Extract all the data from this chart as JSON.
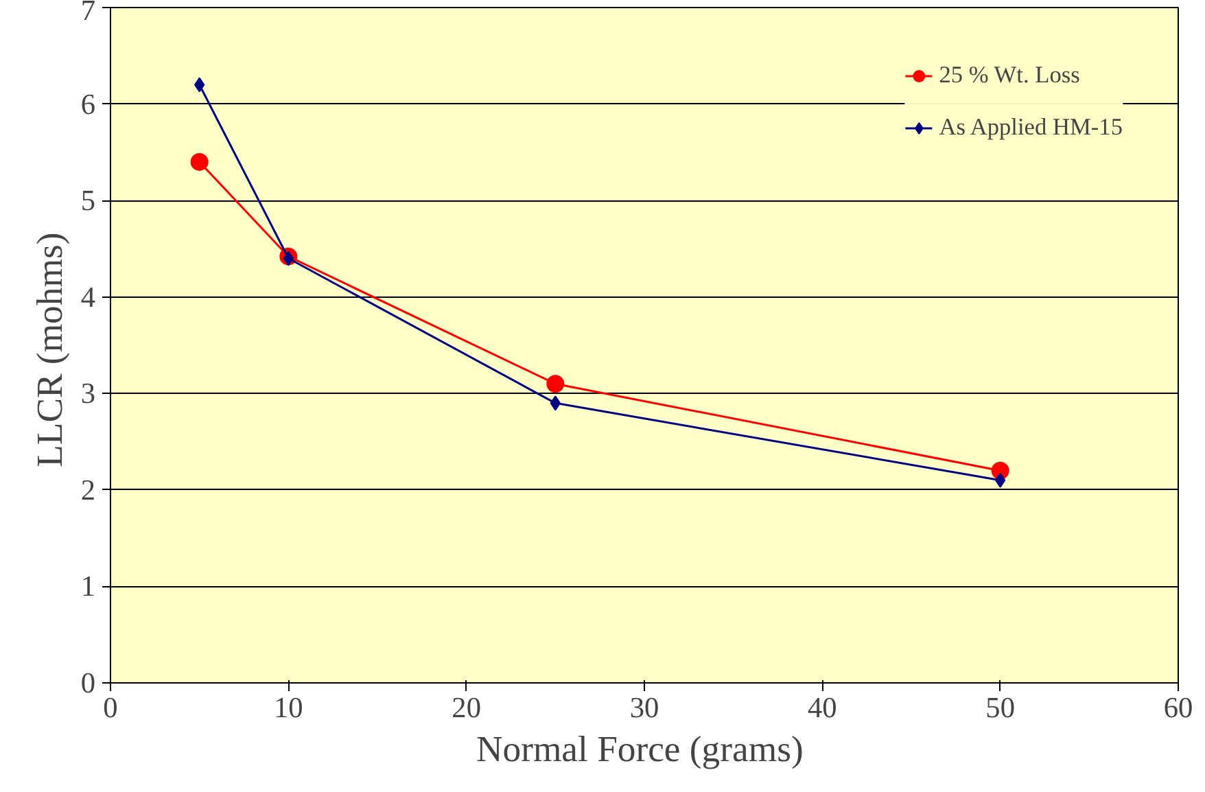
{
  "chart_data": {
    "type": "line",
    "xlabel": "Normal Force  (grams)",
    "ylabel": "LLCR  (mohms)",
    "x": [
      5,
      10,
      25,
      50
    ],
    "series": [
      {
        "name": "25 % Wt. Loss",
        "color": "#ff0000",
        "marker": "circle",
        "values": [
          5.4,
          4.42,
          3.1,
          2.2
        ]
      },
      {
        "name": "As Applied HM-15",
        "color": "#000080",
        "marker": "diamond",
        "values": [
          6.2,
          4.4,
          2.9,
          2.1
        ]
      }
    ],
    "xlim": [
      0,
      60
    ],
    "xticks": [
      0,
      10,
      20,
      30,
      40,
      50,
      60
    ],
    "ylim": [
      0,
      7
    ],
    "yticks": [
      0,
      1,
      2,
      3,
      4,
      5,
      6,
      7
    ],
    "grid": "y",
    "legend": "top right",
    "line_style": "solid"
  }
}
